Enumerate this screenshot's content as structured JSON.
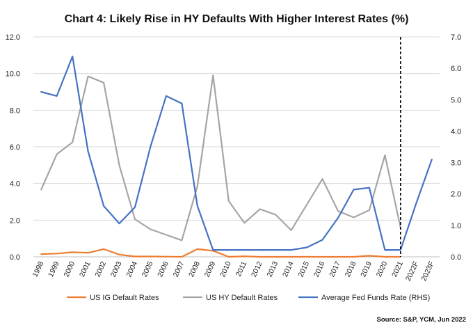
{
  "chart_data": {
    "type": "line",
    "title": "Chart 4: Likely Rise in HY Defaults With Higher Interest Rates (%)",
    "source": "Source: S&P, YCM, Jun 2022",
    "categories": [
      "1998",
      "1999",
      "2000",
      "2001",
      "2002",
      "2003",
      "2004",
      "2005",
      "2006",
      "2007",
      "2008",
      "2009",
      "2010",
      "2011",
      "2012",
      "2013",
      "2014",
      "2015",
      "2016",
      "2017",
      "2018",
      "2019",
      "2020",
      "2021",
      "2022F",
      "2023F"
    ],
    "y_left": {
      "ylim": [
        0,
        12
      ],
      "ticks": [
        "0.0",
        "2.0",
        "4.0",
        "6.0",
        "8.0",
        "10.0",
        "12.0"
      ]
    },
    "y_right": {
      "ylim": [
        0,
        7
      ],
      "ticks": [
        "0.0",
        "1.0",
        "2.0",
        "3.0",
        "4.0",
        "5.0",
        "6.0",
        "7.0"
      ]
    },
    "grid": true,
    "legend_position": "bottom",
    "forecast_divider_after": "2021",
    "series": [
      {
        "name": "US IG Default Rates",
        "axis": "left",
        "color": "#ED7D31",
        "values": [
          0.15,
          0.18,
          0.25,
          0.22,
          0.42,
          0.12,
          0.02,
          0.02,
          0.01,
          0.0,
          0.42,
          0.33,
          0.0,
          0.03,
          0.0,
          0.0,
          0.0,
          0.0,
          0.0,
          0.0,
          0.0,
          0.06,
          0.0,
          0.0,
          null,
          null
        ]
      },
      {
        "name": "US HY Default Rates",
        "axis": "left",
        "color": "#A5A5A5",
        "values": [
          3.67,
          5.6,
          6.25,
          9.85,
          9.5,
          5.0,
          2.05,
          1.5,
          1.2,
          0.9,
          3.85,
          9.9,
          3.05,
          1.85,
          2.6,
          2.3,
          1.45,
          2.85,
          4.25,
          2.5,
          2.15,
          2.55,
          5.55,
          1.6,
          null,
          null
        ]
      },
      {
        "name": "Average Fed Funds Rate (RHS)",
        "axis": "right",
        "color": "#4472C4",
        "values": [
          5.25,
          5.12,
          6.38,
          3.36,
          1.62,
          1.06,
          1.58,
          3.52,
          5.12,
          4.88,
          1.62,
          0.22,
          0.22,
          0.22,
          0.22,
          0.22,
          0.22,
          0.3,
          0.54,
          1.24,
          2.14,
          2.2,
          0.22,
          0.22,
          1.7,
          3.1
        ]
      }
    ]
  }
}
